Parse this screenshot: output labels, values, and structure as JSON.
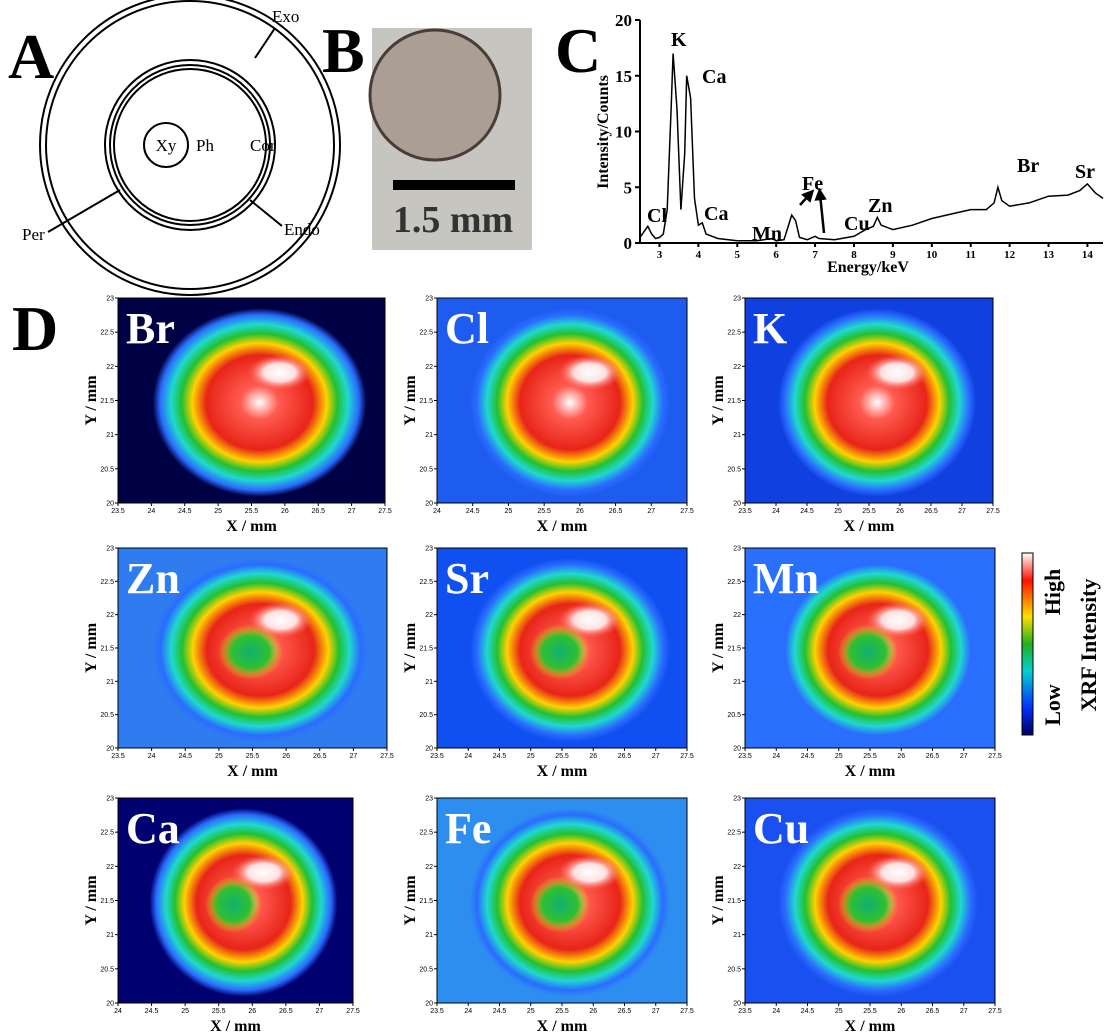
{
  "panel_labels": [
    "A",
    "B",
    "C",
    "D"
  ],
  "diagram": {
    "labels": [
      "Exo",
      "Xy",
      "Ph",
      "Cor",
      "Per",
      "Endo"
    ]
  },
  "photo": {
    "scale_label": "1.5 mm"
  },
  "chart_data": {
    "type": "line",
    "x": [
      2.5,
      2.6,
      2.7,
      2.8,
      2.9,
      3.0,
      3.1,
      3.2,
      3.3,
      3.35,
      3.45,
      3.55,
      3.65,
      3.7,
      3.8,
      3.9,
      4.0,
      4.1,
      4.2,
      4.5,
      5.0,
      5.5,
      5.9,
      6.0,
      6.2,
      6.4,
      6.5,
      6.6,
      6.8,
      7.0,
      7.1,
      7.5,
      8.0,
      8.3,
      8.5,
      8.6,
      8.7,
      9.0,
      9.5,
      10.0,
      10.5,
      11.0,
      11.4,
      11.6,
      11.7,
      11.8,
      12.0,
      12.5,
      13.0,
      13.5,
      13.8,
      14.0,
      14.2,
      14.4
    ],
    "values": [
      0.5,
      1.0,
      1.5,
      0.8,
      0.4,
      0.5,
      0.8,
      3,
      12,
      17,
      12,
      3,
      8,
      15,
      13,
      4,
      1.6,
      1.8,
      0.8,
      0.4,
      0.2,
      0.2,
      0.4,
      0.2,
      0.3,
      2.5,
      2.0,
      0.5,
      0.3,
      0.6,
      0.4,
      0.3,
      0.6,
      1.2,
      1.5,
      2.3,
      1.6,
      1.2,
      1.6,
      2.2,
      2.6,
      3.0,
      3.0,
      3.6,
      5.0,
      3.8,
      3.3,
      3.6,
      4.2,
      4.3,
      4.7,
      5.3,
      4.5,
      4.0
    ],
    "color": "#000000",
    "xlim": [
      2.5,
      14.4
    ],
    "ylim": [
      0,
      20
    ],
    "xticks": [
      3,
      4,
      5,
      6,
      7,
      8,
      9,
      10,
      11,
      12,
      13,
      14
    ],
    "yticks": [
      0,
      5,
      10,
      15,
      20
    ],
    "xlabel": "Energy/keV",
    "ylabel": "Intensity/Counts",
    "annotations": [
      "Cl",
      "K",
      "Ca",
      "Ca",
      "Mn",
      "Fe",
      "Cu",
      "Zn",
      "Br",
      "Sr"
    ]
  },
  "maps": [
    {
      "element": "Br",
      "xlim": [
        23.5,
        27.5
      ],
      "ylim": [
        20,
        23
      ],
      "xticks": [
        23.5,
        24,
        24.5,
        25,
        25.5,
        26,
        26.5,
        27,
        27.5
      ],
      "yticks": [
        20,
        20.5,
        21,
        21.5,
        22,
        22.5,
        23
      ],
      "xlabel": "X / mm",
      "ylabel": "Y / mm"
    },
    {
      "element": "Cl",
      "xlim": [
        24,
        27.5
      ],
      "ylim": [
        20,
        23
      ],
      "xticks": [
        24,
        24.5,
        25,
        25.5,
        26,
        26.5,
        27,
        27.5
      ],
      "yticks": [
        20,
        20.5,
        21,
        21.5,
        22,
        22.5,
        23
      ],
      "xlabel": "X / mm",
      "ylabel": "Y / mm"
    },
    {
      "element": "K",
      "xlim": [
        23.5,
        27.5
      ],
      "ylim": [
        20,
        23
      ],
      "xticks": [
        23.5,
        24,
        24.5,
        25,
        25.5,
        26,
        26.5,
        27,
        27.5
      ],
      "yticks": [
        20,
        20.5,
        21,
        21.5,
        22,
        22.5,
        23
      ],
      "xlabel": "X / mm",
      "ylabel": "Y / mm"
    },
    {
      "element": "Zn",
      "xlim": [
        23.5,
        27.5
      ],
      "ylim": [
        20,
        23
      ],
      "xticks": [
        23.5,
        24,
        24.5,
        25,
        25.5,
        26,
        26.5,
        27,
        27.5
      ],
      "yticks": [
        20,
        20.5,
        21,
        21.5,
        22,
        22.5,
        23
      ],
      "xlabel": "X / mm",
      "ylabel": "Y / mm"
    },
    {
      "element": "Sr",
      "xlim": [
        23.5,
        27.5
      ],
      "ylim": [
        20,
        23
      ],
      "xticks": [
        23.5,
        24,
        24.5,
        25,
        25.5,
        26,
        26.5,
        27,
        27.5
      ],
      "yticks": [
        20,
        20.5,
        21,
        21.5,
        22,
        22.5,
        23
      ],
      "xlabel": "X / mm",
      "ylabel": "Y / mm"
    },
    {
      "element": "Mn",
      "xlim": [
        23.5,
        27.5
      ],
      "ylim": [
        20,
        23
      ],
      "xticks": [
        23.5,
        24,
        24.5,
        25,
        25.5,
        26,
        26.5,
        27,
        27.5
      ],
      "yticks": [
        20,
        20.5,
        21,
        21.5,
        22,
        22.5,
        23
      ],
      "xlabel": "X / mm",
      "ylabel": "Y / mm"
    },
    {
      "element": "Ca",
      "xlim": [
        24,
        27.5
      ],
      "ylim": [
        20,
        23
      ],
      "xticks": [
        24,
        24.5,
        25,
        25.5,
        26,
        26.5,
        27,
        27.5
      ],
      "yticks": [
        20,
        20.5,
        21,
        21.5,
        22,
        22.5,
        23
      ],
      "xlabel": "X / mm",
      "ylabel": "Y / mm"
    },
    {
      "element": "Fe",
      "xlim": [
        23.5,
        27.5
      ],
      "ylim": [
        20,
        23
      ],
      "xticks": [
        23.5,
        24,
        24.5,
        25,
        25.5,
        26,
        26.5,
        27,
        27.5
      ],
      "yticks": [
        20,
        20.5,
        21,
        21.5,
        22,
        22.5,
        23
      ],
      "xlabel": "X / mm",
      "ylabel": "Y / mm"
    },
    {
      "element": "Cu",
      "xlim": [
        23.5,
        27.5
      ],
      "ylim": [
        20,
        23
      ],
      "xticks": [
        23.5,
        24,
        24.5,
        25,
        25.5,
        26,
        26.5,
        27,
        27.5
      ],
      "yticks": [
        20,
        20.5,
        21,
        21.5,
        22,
        22.5,
        23
      ],
      "xlabel": "X / mm",
      "ylabel": "Y / mm"
    }
  ],
  "colorbar": {
    "high": "High",
    "low": "Low",
    "title": "XRF Intensity"
  }
}
